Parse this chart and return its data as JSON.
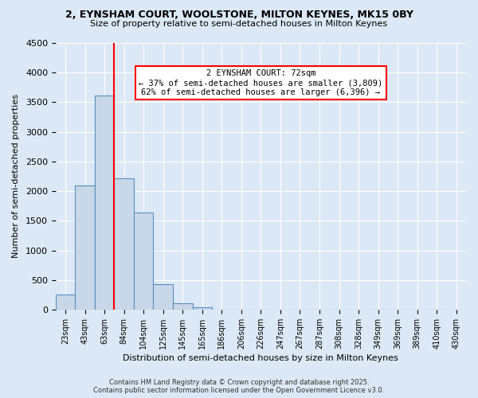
{
  "title1": "2, EYNSHAM COURT, WOOLSTONE, MILTON KEYNES, MK15 0BY",
  "title2": "Size of property relative to semi-detached houses in Milton Keynes",
  "xlabel": "Distribution of semi-detached houses by size in Milton Keynes",
  "ylabel": "Number of semi-detached properties",
  "bin_labels": [
    "23sqm",
    "43sqm",
    "63sqm",
    "84sqm",
    "104sqm",
    "125sqm",
    "145sqm",
    "165sqm",
    "186sqm",
    "206sqm",
    "226sqm",
    "247sqm",
    "267sqm",
    "287sqm",
    "308sqm",
    "328sqm",
    "349sqm",
    "369sqm",
    "389sqm",
    "410sqm",
    "430sqm"
  ],
  "bar_values": [
    250,
    2100,
    3620,
    2220,
    1640,
    430,
    105,
    35,
    0,
    0,
    0,
    0,
    0,
    0,
    0,
    0,
    0,
    0,
    0,
    0,
    0
  ],
  "bar_color": "#c8d8e8",
  "bar_edge_color": "#5a8fc0",
  "ylim": [
    0,
    4500
  ],
  "yticks": [
    0,
    500,
    1000,
    1500,
    2000,
    2500,
    3000,
    3500,
    4000,
    4500
  ],
  "property_line_x": 2.5,
  "annotation_title": "2 EYNSHAM COURT: 72sqm",
  "annotation_line1": "← 37% of semi-detached houses are smaller (3,809)",
  "annotation_line2": "62% of semi-detached houses are larger (6,396) →",
  "footer_line1": "Contains HM Land Registry data © Crown copyright and database right 2025.",
  "footer_line2": "Contains public sector information licensed under the Open Government Licence v3.0.",
  "background_color": "#dce8f5",
  "plot_bg_color": "#dce8f5",
  "grid_color": "white"
}
